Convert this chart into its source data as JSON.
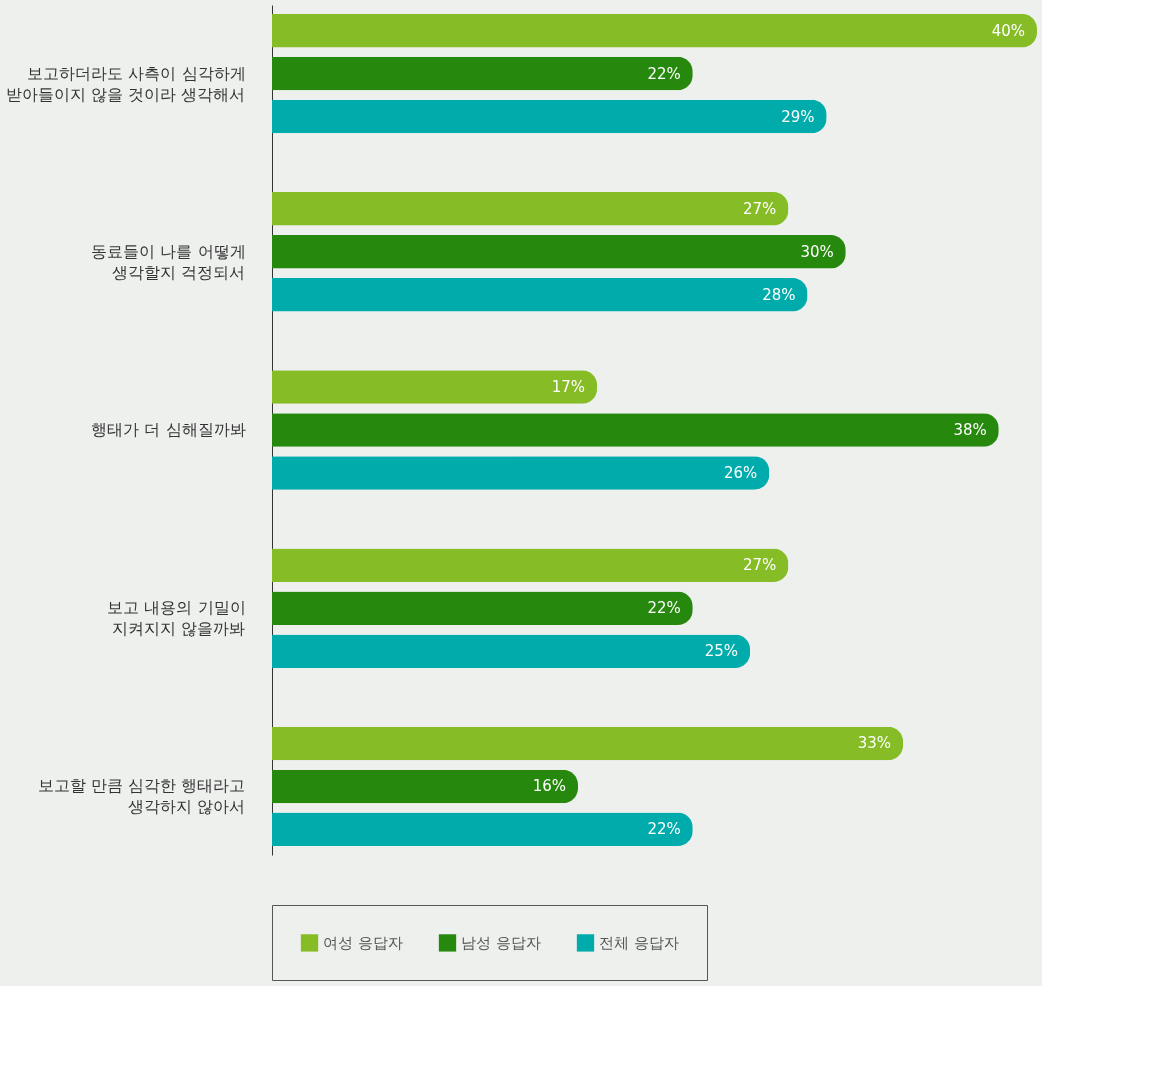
{
  "chart_data": {
    "type": "bar",
    "orientation": "horizontal",
    "categories": [
      "보고하더라도 사측이 심각하게\n받아들이지 않을 것이라 생각해서",
      "동료들이 나를 어떻게\n생각할지 걱정되서",
      "행태가 더 심해질까봐",
      "보고 내용의 기밀이\n지켜지지 않을까봐",
      "보고할 만큼 심각한 행태라고\n생각하지 않아서"
    ],
    "series": [
      {
        "name": "여성 응답자",
        "color": "#86bc25",
        "values": [
          40,
          27,
          17,
          27,
          33
        ],
        "value_labels": [
          "40%",
          "27%",
          "17%",
          "27%",
          "33%"
        ]
      },
      {
        "name": "남성 응답자",
        "color": "#26890d",
        "values": [
          22,
          30,
          38,
          22,
          16
        ],
        "value_labels": [
          "22%",
          "30%",
          "38%",
          "22%",
          "16%"
        ]
      },
      {
        "name": "전체 응답자",
        "color": "#00abab",
        "values": [
          29,
          28,
          26,
          25,
          22
        ],
        "value_labels": [
          "29%",
          "28%",
          "26%",
          "25%",
          "22%"
        ]
      }
    ],
    "legend": "bottom",
    "grid": false,
    "tick_labels": "y"
  }
}
